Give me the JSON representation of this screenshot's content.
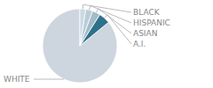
{
  "chart_data": {
    "type": "pie",
    "categories": [
      "WHITE",
      "A.I.",
      "ASIAN",
      "HISPANIC",
      "BLACK"
    ],
    "values": [
      86,
      5,
      3.5,
      3,
      2.5
    ],
    "colors": [
      "#cdd6df",
      "#2e718a",
      "#a4bbc9",
      "#b8cdd7",
      "#cad9e2"
    ]
  }
}
